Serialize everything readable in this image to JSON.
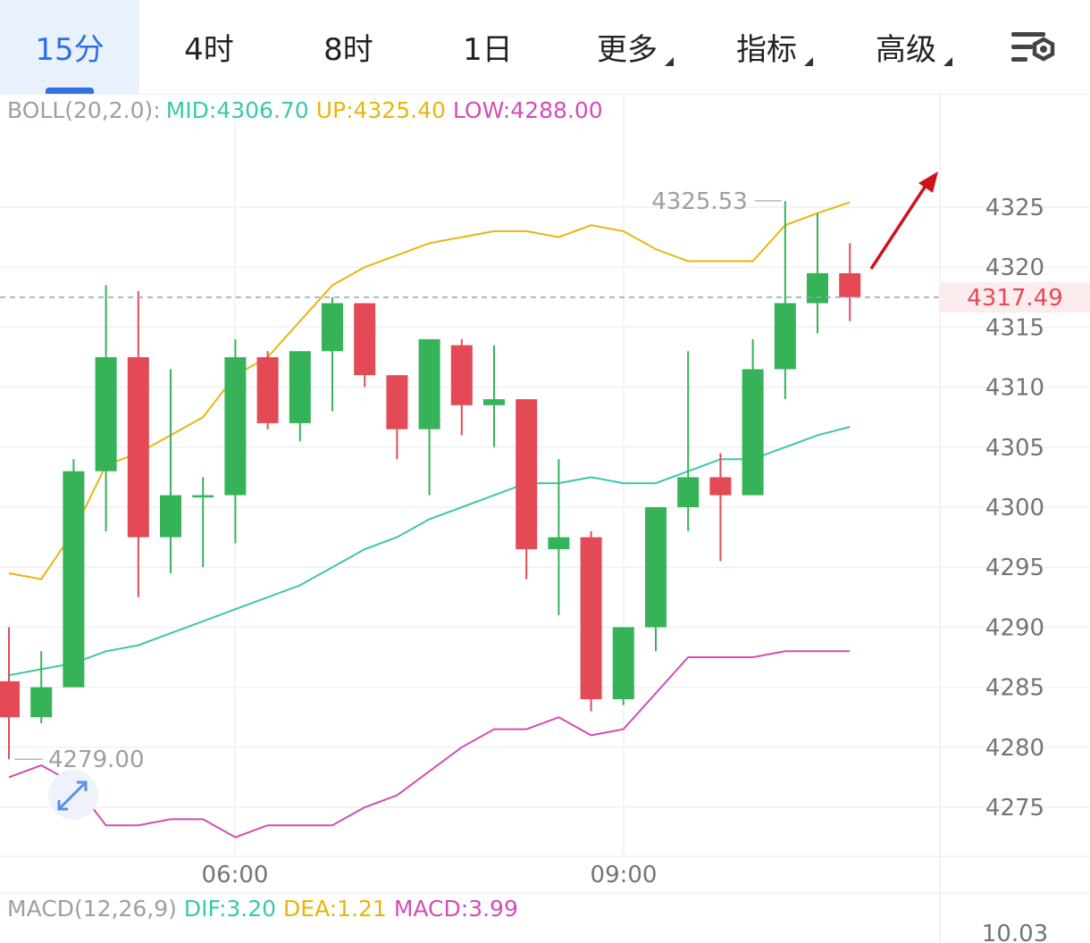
{
  "tabs": [
    {
      "label": "15分",
      "active": true
    },
    {
      "label": "4时"
    },
    {
      "label": "8时"
    },
    {
      "label": "1日"
    },
    {
      "label": "更多",
      "dropdown": true
    },
    {
      "label": "指标",
      "dropdown": true
    },
    {
      "label": "高级",
      "dropdown": true
    }
  ],
  "settings_icon": "chart-settings-icon",
  "expand_icon": "expand-arrows-icon",
  "boll": {
    "name": "BOLL(20,2.0):",
    "mid": "MID:4306.70",
    "up": "UP:4325.40",
    "low": "LOW:4288.00"
  },
  "macd": {
    "name": "MACD(12,26,9)",
    "dif": "DIF:3.20",
    "dea": "DEA:1.21",
    "macd": "MACD:3.99",
    "axis_top": "10.03"
  },
  "current_price": "4317.49",
  "high_label": "4325.53",
  "low_label": "4279.00",
  "colors": {
    "up": "#36b358",
    "down": "#e44a56",
    "mid": "#3cc7a9",
    "upper": "#e8b50e",
    "lower": "#d24db8",
    "accent": "#2f6fe4",
    "arrow": "#d0111d"
  },
  "chart_data": {
    "type": "candlestick",
    "y_ticks": [
      4325,
      4320,
      4315,
      4310,
      4305,
      4300,
      4295,
      4290,
      4285,
      4280,
      4275
    ],
    "x_ticks": [
      "06:00",
      "09:00"
    ],
    "candles": [
      {
        "o": 4285.5,
        "h": 4290.0,
        "l": 4279.0,
        "c": 4282.5
      },
      {
        "o": 4282.5,
        "h": 4288.0,
        "l": 4282.0,
        "c": 4285.0
      },
      {
        "o": 4285.0,
        "h": 4304.0,
        "l": 4285.0,
        "c": 4303.0
      },
      {
        "o": 4303.0,
        "h": 4318.5,
        "l": 4298.0,
        "c": 4312.5
      },
      {
        "o": 4312.5,
        "h": 4318.0,
        "l": 4292.5,
        "c": 4297.5
      },
      {
        "o": 4297.5,
        "h": 4311.5,
        "l": 4294.5,
        "c": 4301.0
      },
      {
        "o": 4301.0,
        "h": 4302.5,
        "l": 4295.0,
        "c": 4301.0
      },
      {
        "o": 4301.0,
        "h": 4314.0,
        "l": 4297.0,
        "c": 4312.5
      },
      {
        "o": 4312.5,
        "h": 4313.0,
        "l": 4306.5,
        "c": 4307.0
      },
      {
        "o": 4307.0,
        "h": 4313.0,
        "l": 4305.5,
        "c": 4313.0
      },
      {
        "o": 4313.0,
        "h": 4317.5,
        "l": 4308.0,
        "c": 4317.0
      },
      {
        "o": 4317.0,
        "h": 4317.0,
        "l": 4310.0,
        "c": 4311.0
      },
      {
        "o": 4311.0,
        "h": 4311.0,
        "l": 4304.0,
        "c": 4306.5
      },
      {
        "o": 4306.5,
        "h": 4314.0,
        "l": 4301.0,
        "c": 4314.0
      },
      {
        "o": 4313.5,
        "h": 4314.0,
        "l": 4306.0,
        "c": 4308.5
      },
      {
        "o": 4308.5,
        "h": 4313.5,
        "l": 4305.0,
        "c": 4309.0
      },
      {
        "o": 4309.0,
        "h": 4309.0,
        "l": 4294.0,
        "c": 4296.5
      },
      {
        "o": 4296.5,
        "h": 4304.0,
        "l": 4291.0,
        "c": 4297.5
      },
      {
        "o": 4297.5,
        "h": 4298.0,
        "l": 4283.0,
        "c": 4284.0
      },
      {
        "o": 4284.0,
        "h": 4290.0,
        "l": 4283.5,
        "c": 4290.0
      },
      {
        "o": 4290.0,
        "h": 4300.0,
        "l": 4288.0,
        "c": 4300.0
      },
      {
        "o": 4300.0,
        "h": 4313.0,
        "l": 4298.0,
        "c": 4302.5
      },
      {
        "o": 4302.5,
        "h": 4304.5,
        "l": 4295.5,
        "c": 4301.0
      },
      {
        "o": 4301.0,
        "h": 4314.0,
        "l": 4301.0,
        "c": 4311.5
      },
      {
        "o": 4311.5,
        "h": 4325.5,
        "l": 4309.0,
        "c": 4317.0
      },
      {
        "o": 4317.0,
        "h": 4324.5,
        "l": 4314.5,
        "c": 4319.5
      },
      {
        "o": 4319.5,
        "h": 4322.0,
        "l": 4315.5,
        "c": 4317.5
      }
    ],
    "boll_mid": [
      4286.0,
      4286.5,
      4287.0,
      4288.0,
      4288.5,
      4289.5,
      4290.5,
      4291.5,
      4292.5,
      4293.5,
      4295.0,
      4296.5,
      4297.5,
      4299.0,
      4300.0,
      4301.0,
      4302.0,
      4302.0,
      4302.5,
      4302.0,
      4302.0,
      4303.0,
      4304.0,
      4304.0,
      4305.0,
      4306.0,
      4306.7
    ],
    "boll_up": [
      4294.5,
      4294.0,
      4298.0,
      4303.5,
      4304.5,
      4306.0,
      4307.5,
      4311.0,
      4312.5,
      4315.5,
      4318.5,
      4320.0,
      4321.0,
      4322.0,
      4322.5,
      4323.0,
      4323.0,
      4322.5,
      4323.5,
      4323.0,
      4321.5,
      4320.5,
      4320.5,
      4320.5,
      4323.5,
      4324.5,
      4325.4
    ],
    "boll_low": [
      4277.5,
      4278.5,
      4277.0,
      4273.5,
      4273.5,
      4274.0,
      4274.0,
      4272.5,
      4273.5,
      4273.5,
      4273.5,
      4275.0,
      4276.0,
      4278.0,
      4280.0,
      4281.5,
      4281.5,
      4282.5,
      4281.0,
      4281.5,
      4284.5,
      4287.5,
      4287.5,
      4287.5,
      4288.0,
      4288.0,
      4288.0
    ]
  }
}
